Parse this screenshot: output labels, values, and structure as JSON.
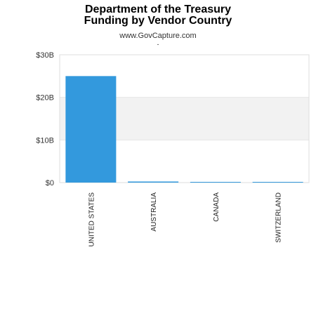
{
  "header": {
    "title_line1": "Department of the Treasury",
    "title_line2": "Funding by Vendor Country",
    "subtitle": "www.GovCapture.com",
    "dash": "-"
  },
  "colors": {
    "bar": "#3399dd",
    "band": "#f2f2f2",
    "frame": "#dddddd"
  },
  "chart_data": {
    "type": "bar",
    "title": "Department of the Treasury Funding by Vendor Country",
    "subtitle": "www.GovCapture.com",
    "categories": [
      "UNITED STATES",
      "AUSTRALIA",
      "CANADA",
      "SWITZERLAND"
    ],
    "values": [
      25000000000,
      250000000,
      10000000,
      2000000
    ],
    "ylim": [
      0,
      30000000000
    ],
    "yticks": [
      {
        "value": 0,
        "label": "$0"
      },
      {
        "value": 10000000000,
        "label": "$10B"
      },
      {
        "value": 20000000000,
        "label": "$20B"
      },
      {
        "value": 30000000000,
        "label": "$30B"
      }
    ],
    "xlabel": "",
    "ylabel": "",
    "grid": "alternating horizontal bands",
    "legend": "none"
  }
}
